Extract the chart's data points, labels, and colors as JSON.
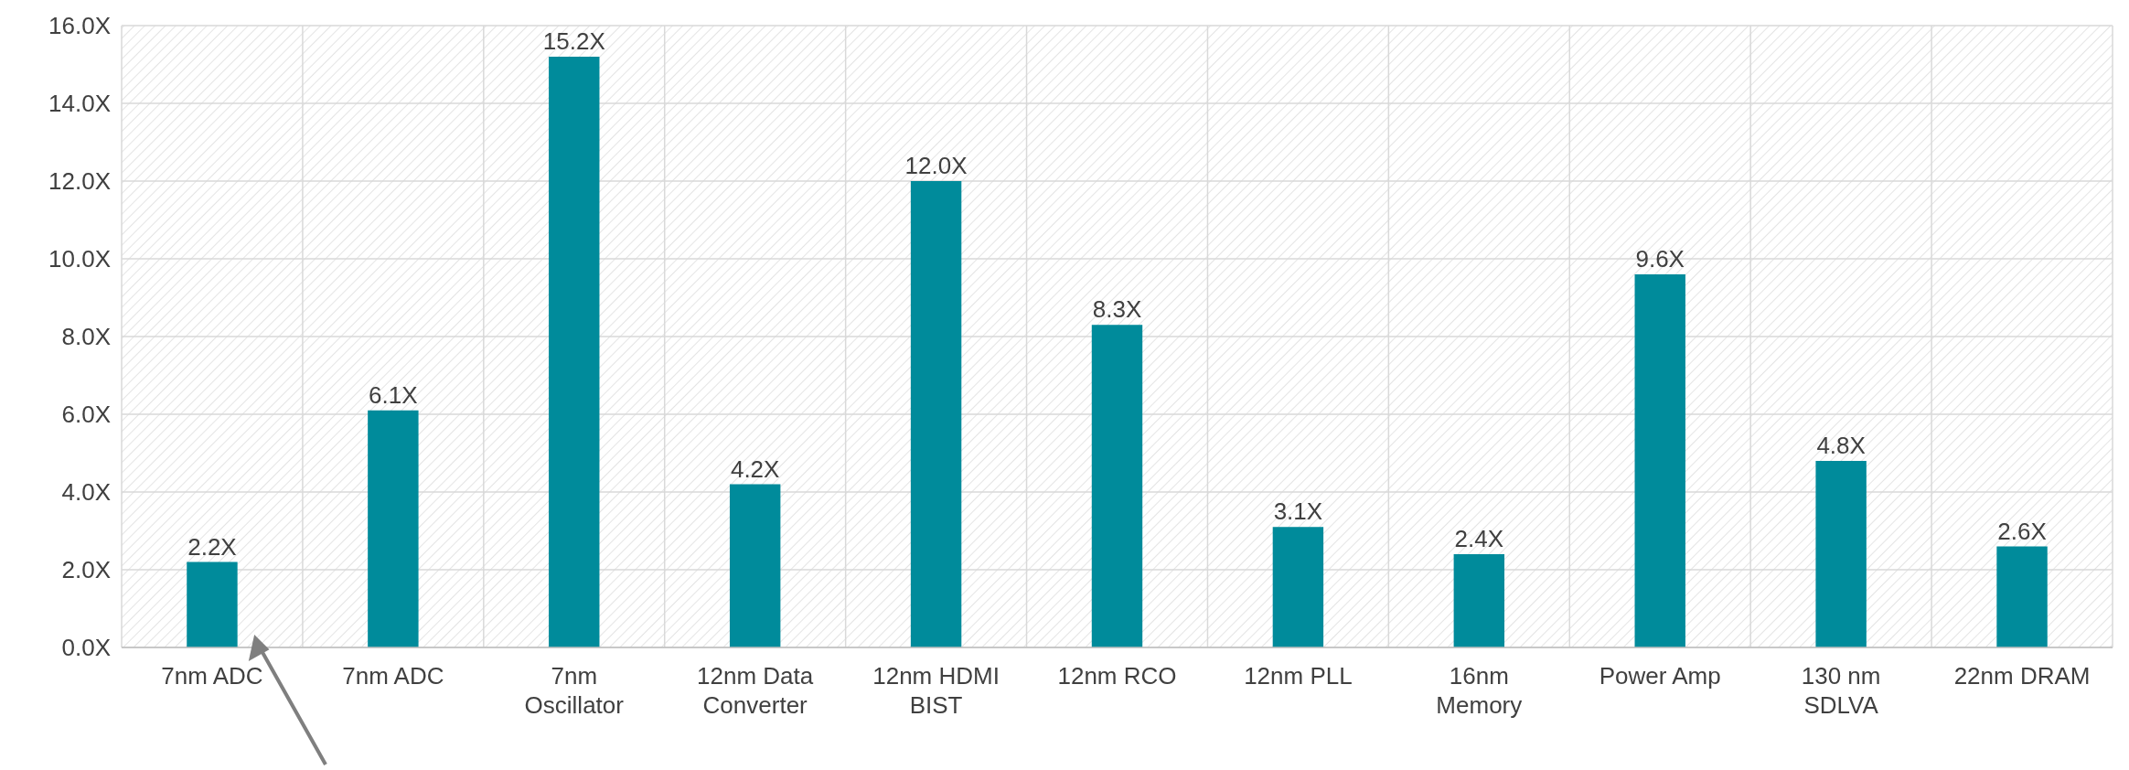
{
  "chart_data": {
    "type": "bar",
    "categories": [
      "7nm ADC",
      "7nm ADC",
      "7nm Oscillator",
      "12nm Data Converter",
      "12nm HDMI BIST",
      "12nm RCO",
      "12nm PLL",
      "16nm Memory",
      "Power Amp",
      "130 nm SDLVA",
      "22nm DRAM"
    ],
    "values": [
      2.2,
      6.1,
      15.2,
      4.2,
      12.0,
      8.3,
      3.1,
      2.4,
      9.6,
      4.8,
      2.6
    ],
    "value_labels": [
      "2.2X",
      "6.1X",
      "15.2X",
      "4.2X",
      "12.0X",
      "8.3X",
      "3.1X",
      "2.4X",
      "9.6X",
      "4.8X",
      "2.6X"
    ],
    "color": "#008b9b",
    "ylim": [
      0,
      16
    ],
    "yticks": [
      {
        "value": 0,
        "label": "0.0X"
      },
      {
        "value": 2,
        "label": "2.0X"
      },
      {
        "value": 4,
        "label": "4.0X"
      },
      {
        "value": 6,
        "label": "6.0X"
      },
      {
        "value": 8,
        "label": "8.0X"
      },
      {
        "value": 10,
        "label": "10.0X"
      },
      {
        "value": 12,
        "label": "12.0X"
      },
      {
        "value": 14,
        "label": "14.0X"
      },
      {
        "value": 16,
        "label": "16.0X"
      }
    ],
    "grid": true
  }
}
